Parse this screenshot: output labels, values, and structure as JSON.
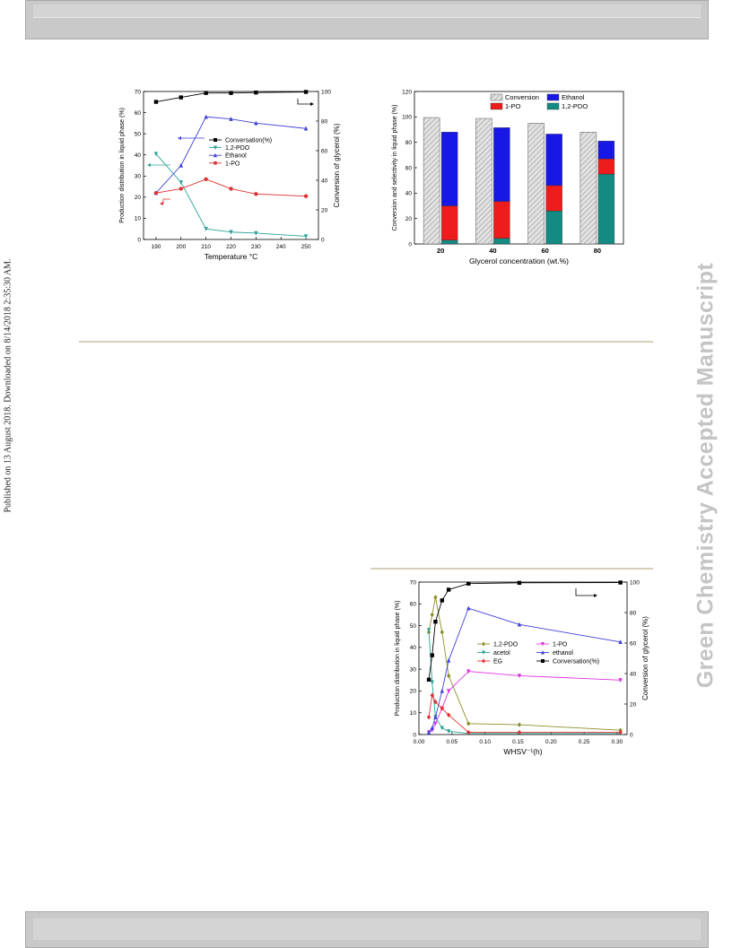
{
  "page": {
    "published_note": "Published on 13 August 2018. Downloaded on 8/14/2018 2:35:30 AM.",
    "watermark": "Green Chemistry Accepted Manuscript"
  },
  "chart_data": [
    {
      "type": "line",
      "x": [
        190,
        200,
        210,
        220,
        230,
        250
      ],
      "xticks": [
        190,
        200,
        210,
        220,
        230,
        240,
        250
      ],
      "xlim": [
        185,
        255
      ],
      "xlabel": "Temperature °C",
      "ylabel": "Production distribution in liquid phase (%)",
      "ylim": [
        0,
        70
      ],
      "yticks": [
        0,
        10,
        20,
        30,
        40,
        50,
        60,
        70
      ],
      "y2label": "Conversion of glycerol (%)",
      "y2lim": [
        0,
        100
      ],
      "y2ticks": [
        0,
        20,
        40,
        60,
        80,
        100
      ],
      "legend_position": "center-right",
      "series": [
        {
          "name": "Conversation(%)",
          "axis": "right",
          "color": "#000000",
          "marker": "square",
          "values": [
            93,
            96,
            99,
            99,
            99.3,
            99.7
          ]
        },
        {
          "name": "1,2-PDO",
          "axis": "left",
          "color": "#2aa39a",
          "marker": "triangle-down",
          "values": [
            40.5,
            27,
            5,
            3.5,
            3,
            1.5
          ]
        },
        {
          "name": "Ethanol",
          "axis": "left",
          "color": "#3f3fdc",
          "marker": "triangle-up",
          "values": [
            22,
            35,
            58,
            57,
            55,
            52.5
          ]
        },
        {
          "name": "1-PO",
          "axis": "left",
          "color": "#e03030",
          "marker": "circle",
          "values": [
            22,
            24,
            28.5,
            24,
            21.5,
            20.5
          ]
        }
      ]
    },
    {
      "type": "bar",
      "categories": [
        "20",
        "40",
        "60",
        "80"
      ],
      "xlabel": "Glycerol concentration (wt.%)",
      "ylabel": "Conversion and selectivity in liquid phase  (%)",
      "ylim": [
        0,
        120
      ],
      "yticks": [
        0,
        20,
        40,
        60,
        80,
        100,
        120
      ],
      "legend_position": "top",
      "conversion": {
        "name": "Conversion",
        "color": "#cfcfcf",
        "values": [
          99.5,
          98.8,
          95,
          88
        ]
      },
      "stack": [
        {
          "name": "1,2-PDO",
          "color": "#138a82",
          "values": [
            3,
            4.5,
            26,
            55
          ]
        },
        {
          "name": "1-PO",
          "color": "#ee1c1c",
          "values": [
            27,
            29,
            20,
            12
          ]
        },
        {
          "name": "Ethanol",
          "color": "#1717e6",
          "values": [
            58,
            58,
            40.5,
            14
          ]
        }
      ]
    },
    {
      "type": "line",
      "x": [
        0.015,
        0.02,
        0.025,
        0.035,
        0.045,
        0.075,
        0.152,
        0.305
      ],
      "xticks": [
        "0.00",
        "0.05",
        "0.10",
        "0.15",
        "0.20",
        "0.25",
        "0.30"
      ],
      "xlim": [
        0,
        0.315
      ],
      "xlabel": "WHSV⁻¹(h)",
      "ylabel": "Production distribution in liquid phase  (%)",
      "ylim": [
        0,
        70
      ],
      "yticks": [
        0,
        10,
        20,
        30,
        40,
        50,
        60,
        70
      ],
      "y2label": "Conversion of glycerol (%)",
      "y2lim": [
        0,
        100
      ],
      "y2ticks": [
        0,
        20,
        40,
        60,
        80,
        100
      ],
      "legend_position": "center-right",
      "series": [
        {
          "name": "1,2-PDO",
          "axis": "left",
          "color": "#8d8d2a",
          "marker": "diamond",
          "values": [
            47,
            55,
            63,
            47,
            27,
            5,
            4.5,
            2
          ]
        },
        {
          "name": "1-PO",
          "axis": "left",
          "color": "#dd33dd",
          "marker": "triangle-down",
          "values": [
            1,
            2,
            5,
            12,
            20,
            29,
            27,
            25
          ]
        },
        {
          "name": "acetol",
          "axis": "left",
          "color": "#2aa39a",
          "marker": "triangle-down",
          "values": [
            48,
            24,
            8,
            3,
            1.5,
            0.5,
            0.5,
            0.5
          ]
        },
        {
          "name": "ethanol",
          "axis": "left",
          "color": "#3f3fdc",
          "marker": "triangle-up",
          "values": [
            1,
            3,
            8,
            20,
            34,
            58,
            50.5,
            42.5
          ]
        },
        {
          "name": "EG",
          "axis": "left",
          "color": "#e03030",
          "marker": "diamond",
          "values": [
            8,
            18,
            15,
            12,
            9,
            1,
            1,
            1
          ]
        },
        {
          "name": "Conversation(%)",
          "axis": "right",
          "color": "#000000",
          "marker": "square",
          "values": [
            36,
            52,
            74,
            88,
            95,
            99,
            99.5,
            99.7
          ]
        }
      ]
    }
  ]
}
